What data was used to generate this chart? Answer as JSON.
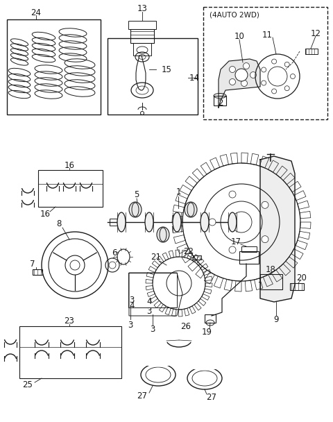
{
  "bg_color": "#ffffff",
  "lc": "#1a1a1a",
  "fs": 8.5,
  "fs_small": 7.5
}
